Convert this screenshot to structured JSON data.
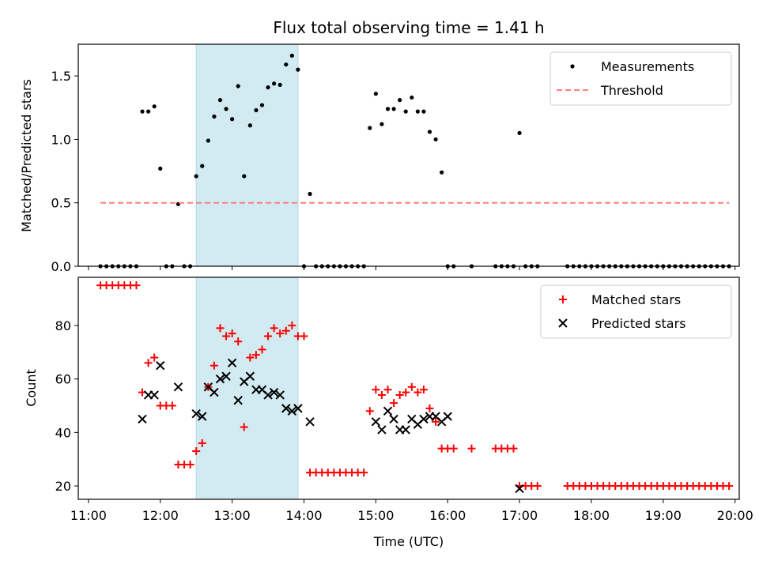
{
  "chart_data": [
    {
      "type": "scatter",
      "title": "Flux total observing time = 1.41 h",
      "xlabel": "",
      "ylabel": "Matched/Predicted stars",
      "xlim": [
        "11:00",
        "20:00"
      ],
      "ylim": [
        0,
        1.75
      ],
      "yticks": [
        0.0,
        0.5,
        1.0,
        1.5
      ],
      "ytick_labels": [
        "0.0",
        "0.5",
        "1.0",
        "1.5"
      ],
      "grid": false,
      "legend_position": "top-right",
      "shaded_span": {
        "start": "12:30",
        "end": "13:55",
        "color": "#add8e6"
      },
      "series": [
        {
          "name": "Measurements",
          "color": "#000000",
          "marker": "dot",
          "x": [
            "11:10",
            "11:15",
            "11:20",
            "11:25",
            "11:30",
            "11:35",
            "11:40",
            "11:45",
            "11:50",
            "11:55",
            "12:00",
            "12:05",
            "12:10",
            "12:15",
            "12:20",
            "12:25",
            "12:30",
            "12:35",
            "12:40",
            "12:45",
            "12:50",
            "12:55",
            "13:00",
            "13:05",
            "13:10",
            "13:15",
            "13:20",
            "13:25",
            "13:30",
            "13:35",
            "13:40",
            "13:45",
            "13:50",
            "13:55",
            "14:00",
            "14:05",
            "14:10",
            "14:15",
            "14:20",
            "14:25",
            "14:30",
            "14:35",
            "14:40",
            "14:45",
            "14:50",
            "14:55",
            "15:00",
            "15:05",
            "15:10",
            "15:15",
            "15:20",
            "15:25",
            "15:30",
            "15:35",
            "15:40",
            "15:45",
            "15:50",
            "15:55",
            "16:00",
            "16:05",
            "16:20",
            "16:40",
            "16:45",
            "16:50",
            "16:55",
            "17:00",
            "17:05",
            "17:10",
            "17:15",
            "17:40",
            "17:45",
            "17:50",
            "17:55",
            "18:00",
            "18:05",
            "18:10",
            "18:15",
            "18:20",
            "18:25",
            "18:30",
            "18:35",
            "18:40",
            "18:45",
            "18:50",
            "18:55",
            "19:00",
            "19:05",
            "19:10",
            "19:15",
            "19:20",
            "19:25",
            "19:30",
            "19:35",
            "19:40",
            "19:45",
            "19:50",
            "19:55"
          ],
          "y": [
            0,
            0,
            0,
            0,
            0,
            0,
            0,
            1.22,
            1.22,
            1.26,
            0.77,
            0,
            0,
            0.49,
            0,
            0,
            0.71,
            0.79,
            0.99,
            1.18,
            1.31,
            1.24,
            1.16,
            1.42,
            0.71,
            1.11,
            1.23,
            1.27,
            1.41,
            1.44,
            1.43,
            1.59,
            1.66,
            1.55,
            0,
            0.57,
            0,
            0,
            0,
            0,
            0,
            0,
            0,
            0,
            0,
            1.09,
            1.36,
            1.12,
            1.24,
            1.24,
            1.31,
            1.22,
            1.33,
            1.22,
            1.22,
            1.06,
            1.0,
            0.74,
            0,
            0,
            0,
            0,
            0,
            0,
            0,
            1.05,
            0,
            0,
            0,
            0,
            0,
            0,
            0,
            0,
            0,
            0,
            0,
            0,
            0,
            0,
            0,
            0,
            0,
            0,
            0,
            0,
            0,
            0,
            0,
            0,
            0,
            0,
            0,
            0,
            0,
            0,
            0
          ]
        },
        {
          "name": "Threshold",
          "color": "#ff7f7f",
          "style": "dashed",
          "x": [
            "11:10",
            "19:55"
          ],
          "y": [
            0.5,
            0.5
          ]
        }
      ]
    },
    {
      "type": "scatter",
      "title": "",
      "xlabel": "Time (UTC)",
      "ylabel": "Count",
      "xlim": [
        "11:00",
        "20:00"
      ],
      "ylim": [
        15,
        98
      ],
      "yticks": [
        20,
        40,
        60,
        80
      ],
      "xticks": [
        "11:00",
        "12:00",
        "13:00",
        "14:00",
        "15:00",
        "16:00",
        "17:00",
        "18:00",
        "19:00",
        "20:00"
      ],
      "grid": false,
      "legend_position": "top-right",
      "shaded_span": {
        "start": "12:30",
        "end": "13:55",
        "color": "#add8e6"
      },
      "series": [
        {
          "name": "Matched stars",
          "color": "#ff0000",
          "marker": "plus",
          "x": [
            "11:10",
            "11:15",
            "11:20",
            "11:25",
            "11:30",
            "11:35",
            "11:40",
            "11:45",
            "11:50",
            "11:55",
            "12:00",
            "12:05",
            "12:10",
            "12:15",
            "12:20",
            "12:25",
            "12:30",
            "12:35",
            "12:40",
            "12:45",
            "12:50",
            "12:55",
            "13:00",
            "13:05",
            "13:10",
            "13:15",
            "13:20",
            "13:25",
            "13:30",
            "13:35",
            "13:40",
            "13:45",
            "13:50",
            "13:55",
            "14:00",
            "14:05",
            "14:10",
            "14:15",
            "14:20",
            "14:25",
            "14:30",
            "14:35",
            "14:40",
            "14:45",
            "14:50",
            "14:55",
            "15:00",
            "15:05",
            "15:10",
            "15:15",
            "15:20",
            "15:25",
            "15:30",
            "15:35",
            "15:40",
            "15:45",
            "15:50",
            "15:55",
            "16:00",
            "16:05",
            "16:20",
            "16:40",
            "16:45",
            "16:50",
            "16:55",
            "17:00",
            "17:05",
            "17:10",
            "17:15",
            "17:40",
            "17:45",
            "17:50",
            "17:55",
            "18:00",
            "18:05",
            "18:10",
            "18:15",
            "18:20",
            "18:25",
            "18:30",
            "18:35",
            "18:40",
            "18:45",
            "18:50",
            "18:55",
            "19:00",
            "19:05",
            "19:10",
            "19:15",
            "19:20",
            "19:25",
            "19:30",
            "19:35",
            "19:40",
            "19:45",
            "19:50",
            "19:55"
          ],
          "y": [
            95,
            95,
            95,
            95,
            95,
            95,
            95,
            55,
            66,
            68,
            50,
            50,
            50,
            28,
            28,
            28,
            33,
            36,
            57,
            65,
            79,
            76,
            77,
            74,
            42,
            68,
            69,
            71,
            76,
            79,
            77,
            78,
            80,
            76,
            76,
            25,
            25,
            25,
            25,
            25,
            25,
            25,
            25,
            25,
            25,
            48,
            56,
            54,
            56,
            51,
            54,
            55,
            57,
            55,
            56,
            49,
            44,
            34,
            34,
            34,
            34,
            34,
            34,
            34,
            34,
            20,
            20,
            20,
            20,
            20,
            20,
            20,
            20,
            20,
            20,
            20,
            20,
            20,
            20,
            20,
            20,
            20,
            20,
            20,
            20,
            20,
            20,
            20,
            20,
            20,
            20,
            20,
            20,
            20,
            20,
            20,
            20
          ]
        },
        {
          "name": "Predicted stars",
          "color": "#000000",
          "marker": "x",
          "x": [
            "11:45",
            "11:50",
            "11:55",
            "12:00",
            "12:15",
            "12:30",
            "12:35",
            "12:40",
            "12:45",
            "12:50",
            "12:55",
            "13:00",
            "13:05",
            "13:10",
            "13:15",
            "13:20",
            "13:25",
            "13:30",
            "13:35",
            "13:40",
            "13:45",
            "13:50",
            "13:55",
            "14:05",
            "15:00",
            "15:05",
            "15:10",
            "15:15",
            "15:20",
            "15:25",
            "15:30",
            "15:35",
            "15:40",
            "15:45",
            "15:50",
            "15:55",
            "16:00",
            "17:00"
          ],
          "y": [
            45,
            54,
            54,
            65,
            57,
            47,
            46,
            57,
            55,
            60,
            61,
            66,
            52,
            59,
            61,
            56,
            56,
            54,
            55,
            54,
            49,
            48,
            49,
            44,
            44,
            41,
            48,
            45,
            41,
            41,
            45,
            43,
            45,
            46,
            46,
            44,
            46,
            19
          ]
        }
      ]
    }
  ]
}
